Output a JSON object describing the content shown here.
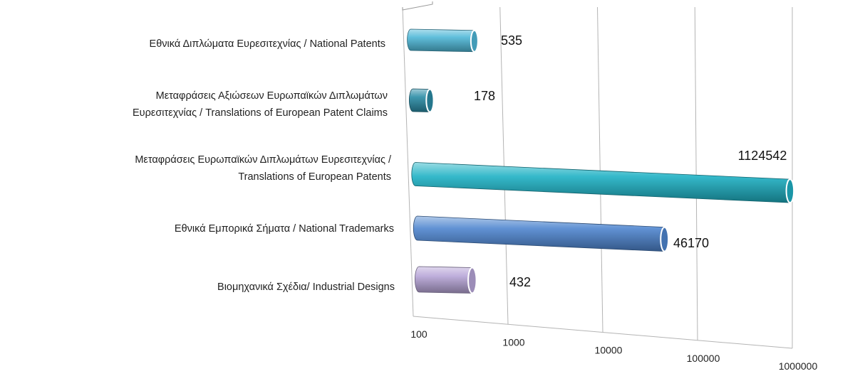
{
  "chart_data": {
    "type": "bar",
    "orientation": "horizontal",
    "three_d": true,
    "x_scale": "log",
    "xlim": [
      100,
      1000000
    ],
    "x_ticks": [
      "100",
      "1000",
      "10000",
      "100000",
      "1000000"
    ],
    "grid": true,
    "categories": [
      [
        "Εθνικά Διπλώματα Ευρεσιτεχνίας / National Patents"
      ],
      [
        "Μεταφράσεις Αξιώσεων Ευρωπαϊκών Διπλωμάτων",
        "Ευρεσιτεχνίας / Translations of European Patent Claims"
      ],
      [
        "Μεταφράσεις Ευρωπαϊκών Διπλωμάτων Ευρεσιτεχνίας /",
        "Translations of European Patents"
      ],
      [
        "Εθνικά Εμπορικά Σήματα / National Trademarks"
      ],
      [
        "Βιομηχανικά Σχέδια/ Industrial Designs"
      ]
    ],
    "values": [
      535,
      178,
      1124542,
      46170,
      432
    ],
    "data_labels": [
      "535",
      "178",
      "1124542",
      "46170",
      "432"
    ],
    "colors": [
      "#4fb8d8",
      "#2b8ca6",
      "#1fb1c4",
      "#4f86cf",
      "#b8a6d8"
    ]
  }
}
